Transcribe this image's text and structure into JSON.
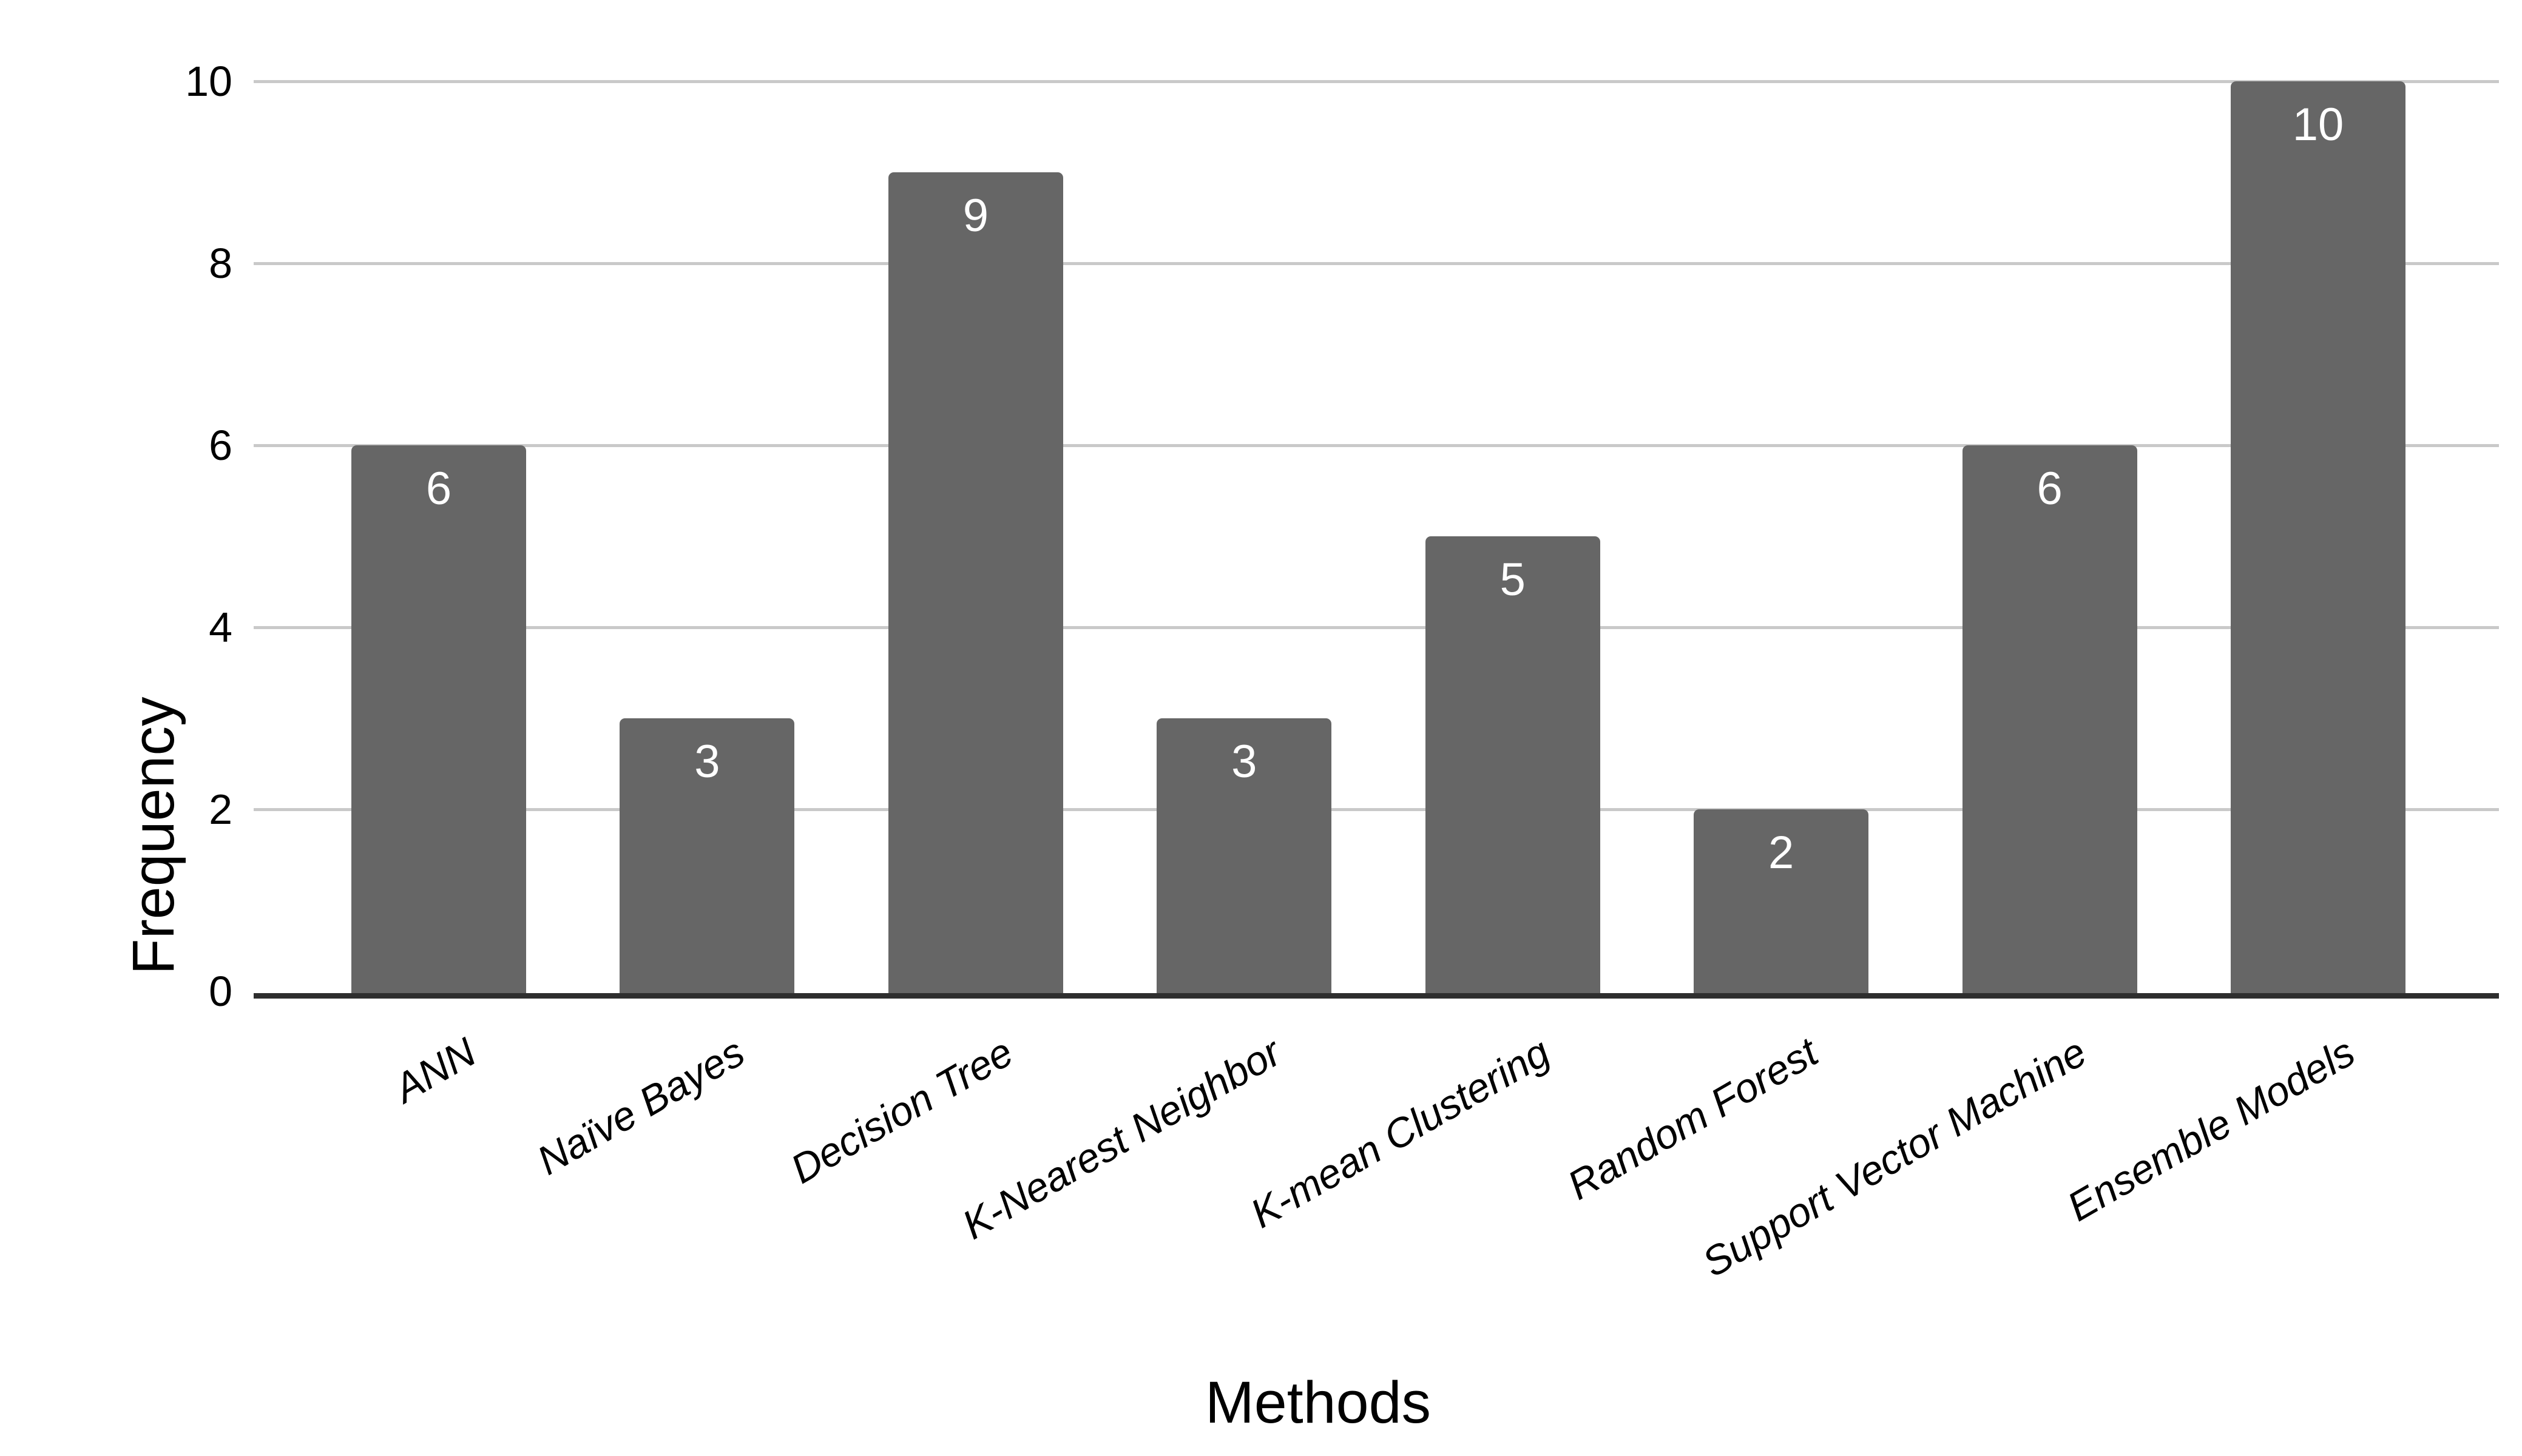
{
  "chart_data": {
    "type": "bar",
    "title": "",
    "categories": [
      "ANN",
      "Naïve Bayes",
      "Decision Tree",
      "K-Nearest Neighbor",
      "K-mean Clustering",
      "Random Forest",
      "Support Vector Machine",
      "Ensemble Models"
    ],
    "values": [
      6,
      3,
      9,
      3,
      5,
      2,
      6,
      10
    ],
    "xlabel": "Methods",
    "ylabel": "Frequency",
    "ylim": [
      0,
      10
    ],
    "yticks": [
      0,
      2,
      4,
      6,
      8,
      10
    ],
    "grid": true,
    "legend_position": "none",
    "bar_labels_visible": true,
    "colors": {
      "bar": "#666666",
      "bar_label_text": "#ffffff",
      "gridline": "#c9c9c9",
      "axis_line": "#2e2e2e",
      "axis_text": "#000000",
      "background": "#ffffff"
    }
  }
}
